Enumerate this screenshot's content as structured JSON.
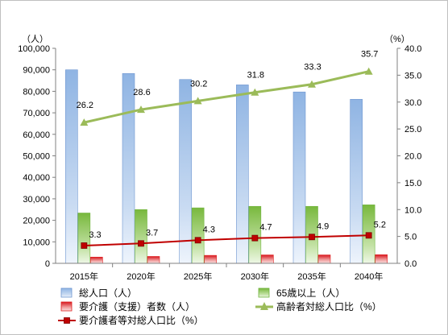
{
  "chart_data": {
    "type": "bar",
    "categories": [
      "2015年",
      "2020年",
      "2025年",
      "2030年",
      "2035年",
      "2040年"
    ],
    "series": [
      {
        "name": "総人口（人）",
        "kind": "bar",
        "axis": "left",
        "color": "#6f96d0",
        "values": [
          90000,
          88300,
          85500,
          83000,
          79700,
          76300
        ]
      },
      {
        "name": "65歳以上（人）",
        "kind": "bar",
        "axis": "left",
        "color": "#6fb33c",
        "values": [
          23400,
          25000,
          25800,
          26500,
          26500,
          27200
        ]
      },
      {
        "name": "要介護（支援）者数（人）",
        "kind": "bar",
        "axis": "left",
        "color": "#e02020",
        "values": [
          2900,
          3200,
          3700,
          3900,
          3900,
          4000
        ]
      },
      {
        "name": "高齢者対総人口比（%）",
        "kind": "line",
        "axis": "right",
        "color": "#9bbb59",
        "values": [
          26.2,
          28.6,
          30.2,
          31.8,
          33.3,
          35.7
        ],
        "labels": [
          "26.2",
          "28.6",
          "30.2",
          "31.8",
          "33.3",
          "35.7"
        ]
      },
      {
        "name": "要介護者等対総人口比（%）",
        "kind": "line",
        "axis": "right",
        "color": "#c00000",
        "values": [
          3.3,
          3.7,
          4.3,
          4.7,
          4.9,
          5.2
        ],
        "labels": [
          "3.3",
          "3.7",
          "4.3",
          "4.7",
          "4.9",
          "5.2"
        ]
      }
    ],
    "y_left": {
      "unit": "（人）",
      "ylim": [
        0,
        100000
      ],
      "ticks": [
        "0",
        "10,000",
        "20,000",
        "30,000",
        "40,000",
        "50,000",
        "60,000",
        "70,000",
        "80,000",
        "90,000",
        "100,000"
      ]
    },
    "y_right": {
      "unit": "（%）",
      "ylim": [
        0,
        40
      ],
      "ticks": [
        "0.0",
        "5.0",
        "10.0",
        "15.0",
        "20.0",
        "25.0",
        "30.0",
        "35.0",
        "40.0"
      ]
    },
    "grid": false,
    "legend_position": "bottom",
    "legend_order": [
      "総人口（人）",
      "65歳以上（人）",
      "要介護（支援）者数（人）",
      "高齢者対総人口比（%）",
      "要介護者等対総人口比（%）"
    ]
  }
}
